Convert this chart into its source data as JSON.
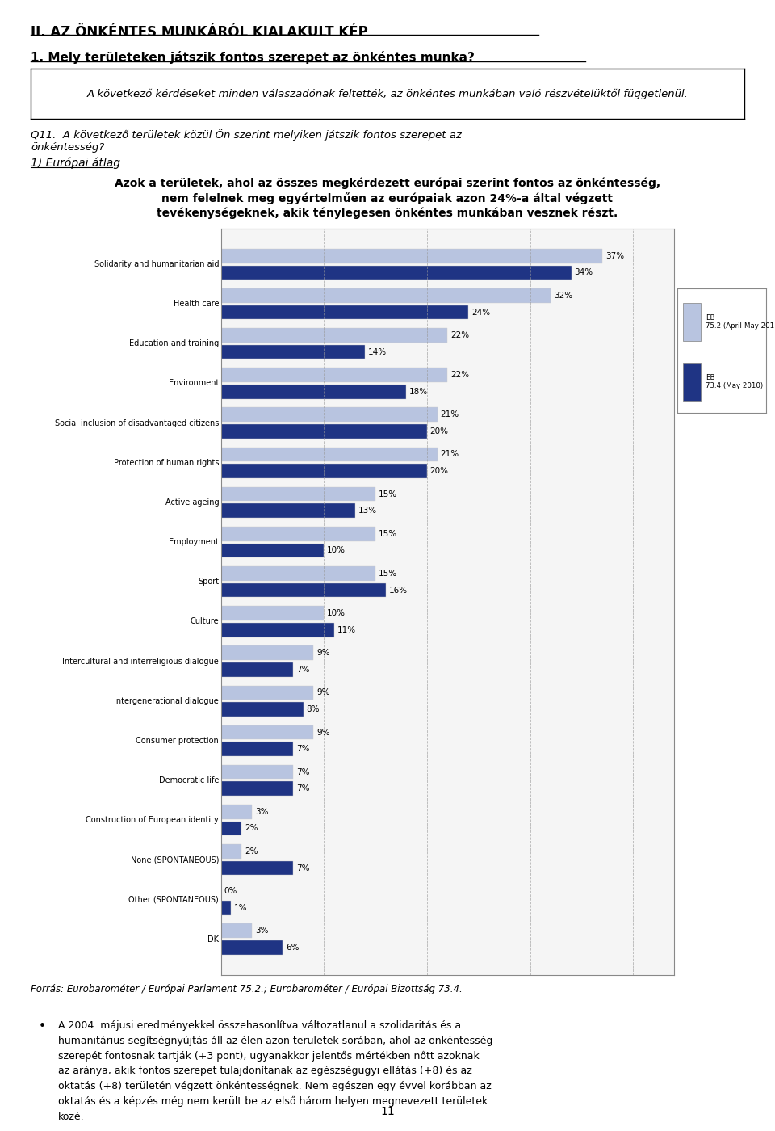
{
  "title1": "II. AZ ÖNKÉNTES MUNKÁRÓL KIALAKULT KÉP",
  "title2": "1. Mely területeken játszik fontos szerepet az önkéntes munka?",
  "box_text": "A következő kérdéseket minden válaszadónak feltették, az önkéntes munkában való részvételüktől függetlenül.",
  "q_text_1": "Q11.  A következő területek közül Ön szerint melyiken játszik fontos szerepet az",
  "q_text_2": "önkéntesség?",
  "section_label": "1) Európai átlag",
  "body_line1": "Azok a területek, ahol az összes megkérdezett európai szerint fontos az önkéntesség,",
  "body_line2": "nem felelnek meg egyértelműen az európaiak azon 24%-a által végzett",
  "body_line3": "tevékenységeknek, akik ténylegesen önkéntes munkában vesznek részt.",
  "categories": [
    "Solidarity and humanitarian aid",
    "Health care",
    "Education and training",
    "Environment",
    "Social inclusion of disadvantaged citizens",
    "Protection of human rights",
    "Active ageing",
    "Employment",
    "Sport",
    "Culture",
    "Intercultural and interreligious dialogue",
    "Intergenerational dialogue",
    "Consumer protection",
    "Democratic life",
    "Construction of European identity",
    "None (SPONTANEOUS)",
    "Other (SPONTANEOUS)",
    "DK"
  ],
  "eb752_values": [
    37,
    32,
    22,
    22,
    21,
    21,
    15,
    15,
    15,
    10,
    9,
    9,
    9,
    7,
    3,
    2,
    0,
    3
  ],
  "eb734_values": [
    34,
    24,
    14,
    18,
    20,
    20,
    13,
    10,
    16,
    11,
    7,
    8,
    7,
    7,
    2,
    7,
    1,
    6
  ],
  "eb752_color": "#b8c4e0",
  "eb734_color": "#1f3484",
  "footnote": "Forrás: Eurobarométer / Európai Parlament 75.2.; Eurobarométer / Európai Bizottság 73.4.",
  "bullet_line1": "A 2004. májusi eredményekkel összehasonlítva változatlanul a szolidaritás és a",
  "bullet_line2": "humanitárius segítségnyújtás áll az élen azon területek sorában, ahol az önkéntesség",
  "bullet_line3": "szerepét fontosnak tartják (+3 pont), ugyanakkor jelentős mértékben nőtt azoknak",
  "bullet_line4": "az aránya, akik fontos szerepet tulajdonítanak az egészségügyi ellátás (+8) és az",
  "bullet_line5": "oktatás (+8) területén végzett önkéntességnek. Nem egészen egy évvel korábban az",
  "bullet_line6": "oktatás és a képzés még nem került be az első három helyen megnevezett területek",
  "bullet_line7": "közé.",
  "page_number": "11",
  "background_color": "#ffffff"
}
